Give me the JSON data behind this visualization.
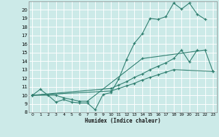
{
  "xlabel": "Humidex (Indice chaleur)",
  "xlim": [
    -0.5,
    23.5
  ],
  "ylim": [
    8,
    21
  ],
  "yticks": [
    8,
    9,
    10,
    11,
    12,
    13,
    14,
    15,
    16,
    17,
    18,
    19,
    20
  ],
  "xticks": [
    0,
    1,
    2,
    3,
    4,
    5,
    6,
    7,
    8,
    9,
    10,
    11,
    12,
    13,
    14,
    15,
    16,
    17,
    18,
    19,
    20,
    21,
    22,
    23
  ],
  "bg_color": "#cceae8",
  "line_color": "#2d7d6e",
  "grid_color": "#ffffff",
  "series": [
    [
      10.0,
      10.7,
      10.0,
      9.2,
      9.5,
      9.2,
      9.1,
      9.1,
      8.3,
      10.1,
      10.3,
      11.9,
      14.2,
      16.1,
      17.2,
      19.0,
      18.9,
      19.2,
      20.8,
      20.1,
      20.8,
      19.5,
      18.9,
      null
    ],
    [
      10.0,
      null,
      null,
      10.0,
      9.7,
      9.5,
      9.3,
      9.3,
      null,
      null,
      null,
      null,
      null,
      null,
      14.3,
      null,
      null,
      null,
      null,
      null,
      null,
      null,
      15.3,
      12.8
    ],
    [
      10.0,
      null,
      null,
      null,
      null,
      null,
      null,
      null,
      null,
      null,
      10.8,
      11.2,
      11.6,
      12.1,
      12.5,
      13.0,
      13.4,
      13.8,
      14.3,
      15.3,
      13.9,
      15.3,
      null,
      null
    ],
    [
      10.0,
      null,
      null,
      null,
      null,
      null,
      null,
      null,
      null,
      null,
      10.5,
      10.8,
      11.1,
      11.4,
      11.8,
      12.1,
      12.4,
      12.7,
      13.0,
      null,
      null,
      null,
      null,
      12.8
    ]
  ]
}
